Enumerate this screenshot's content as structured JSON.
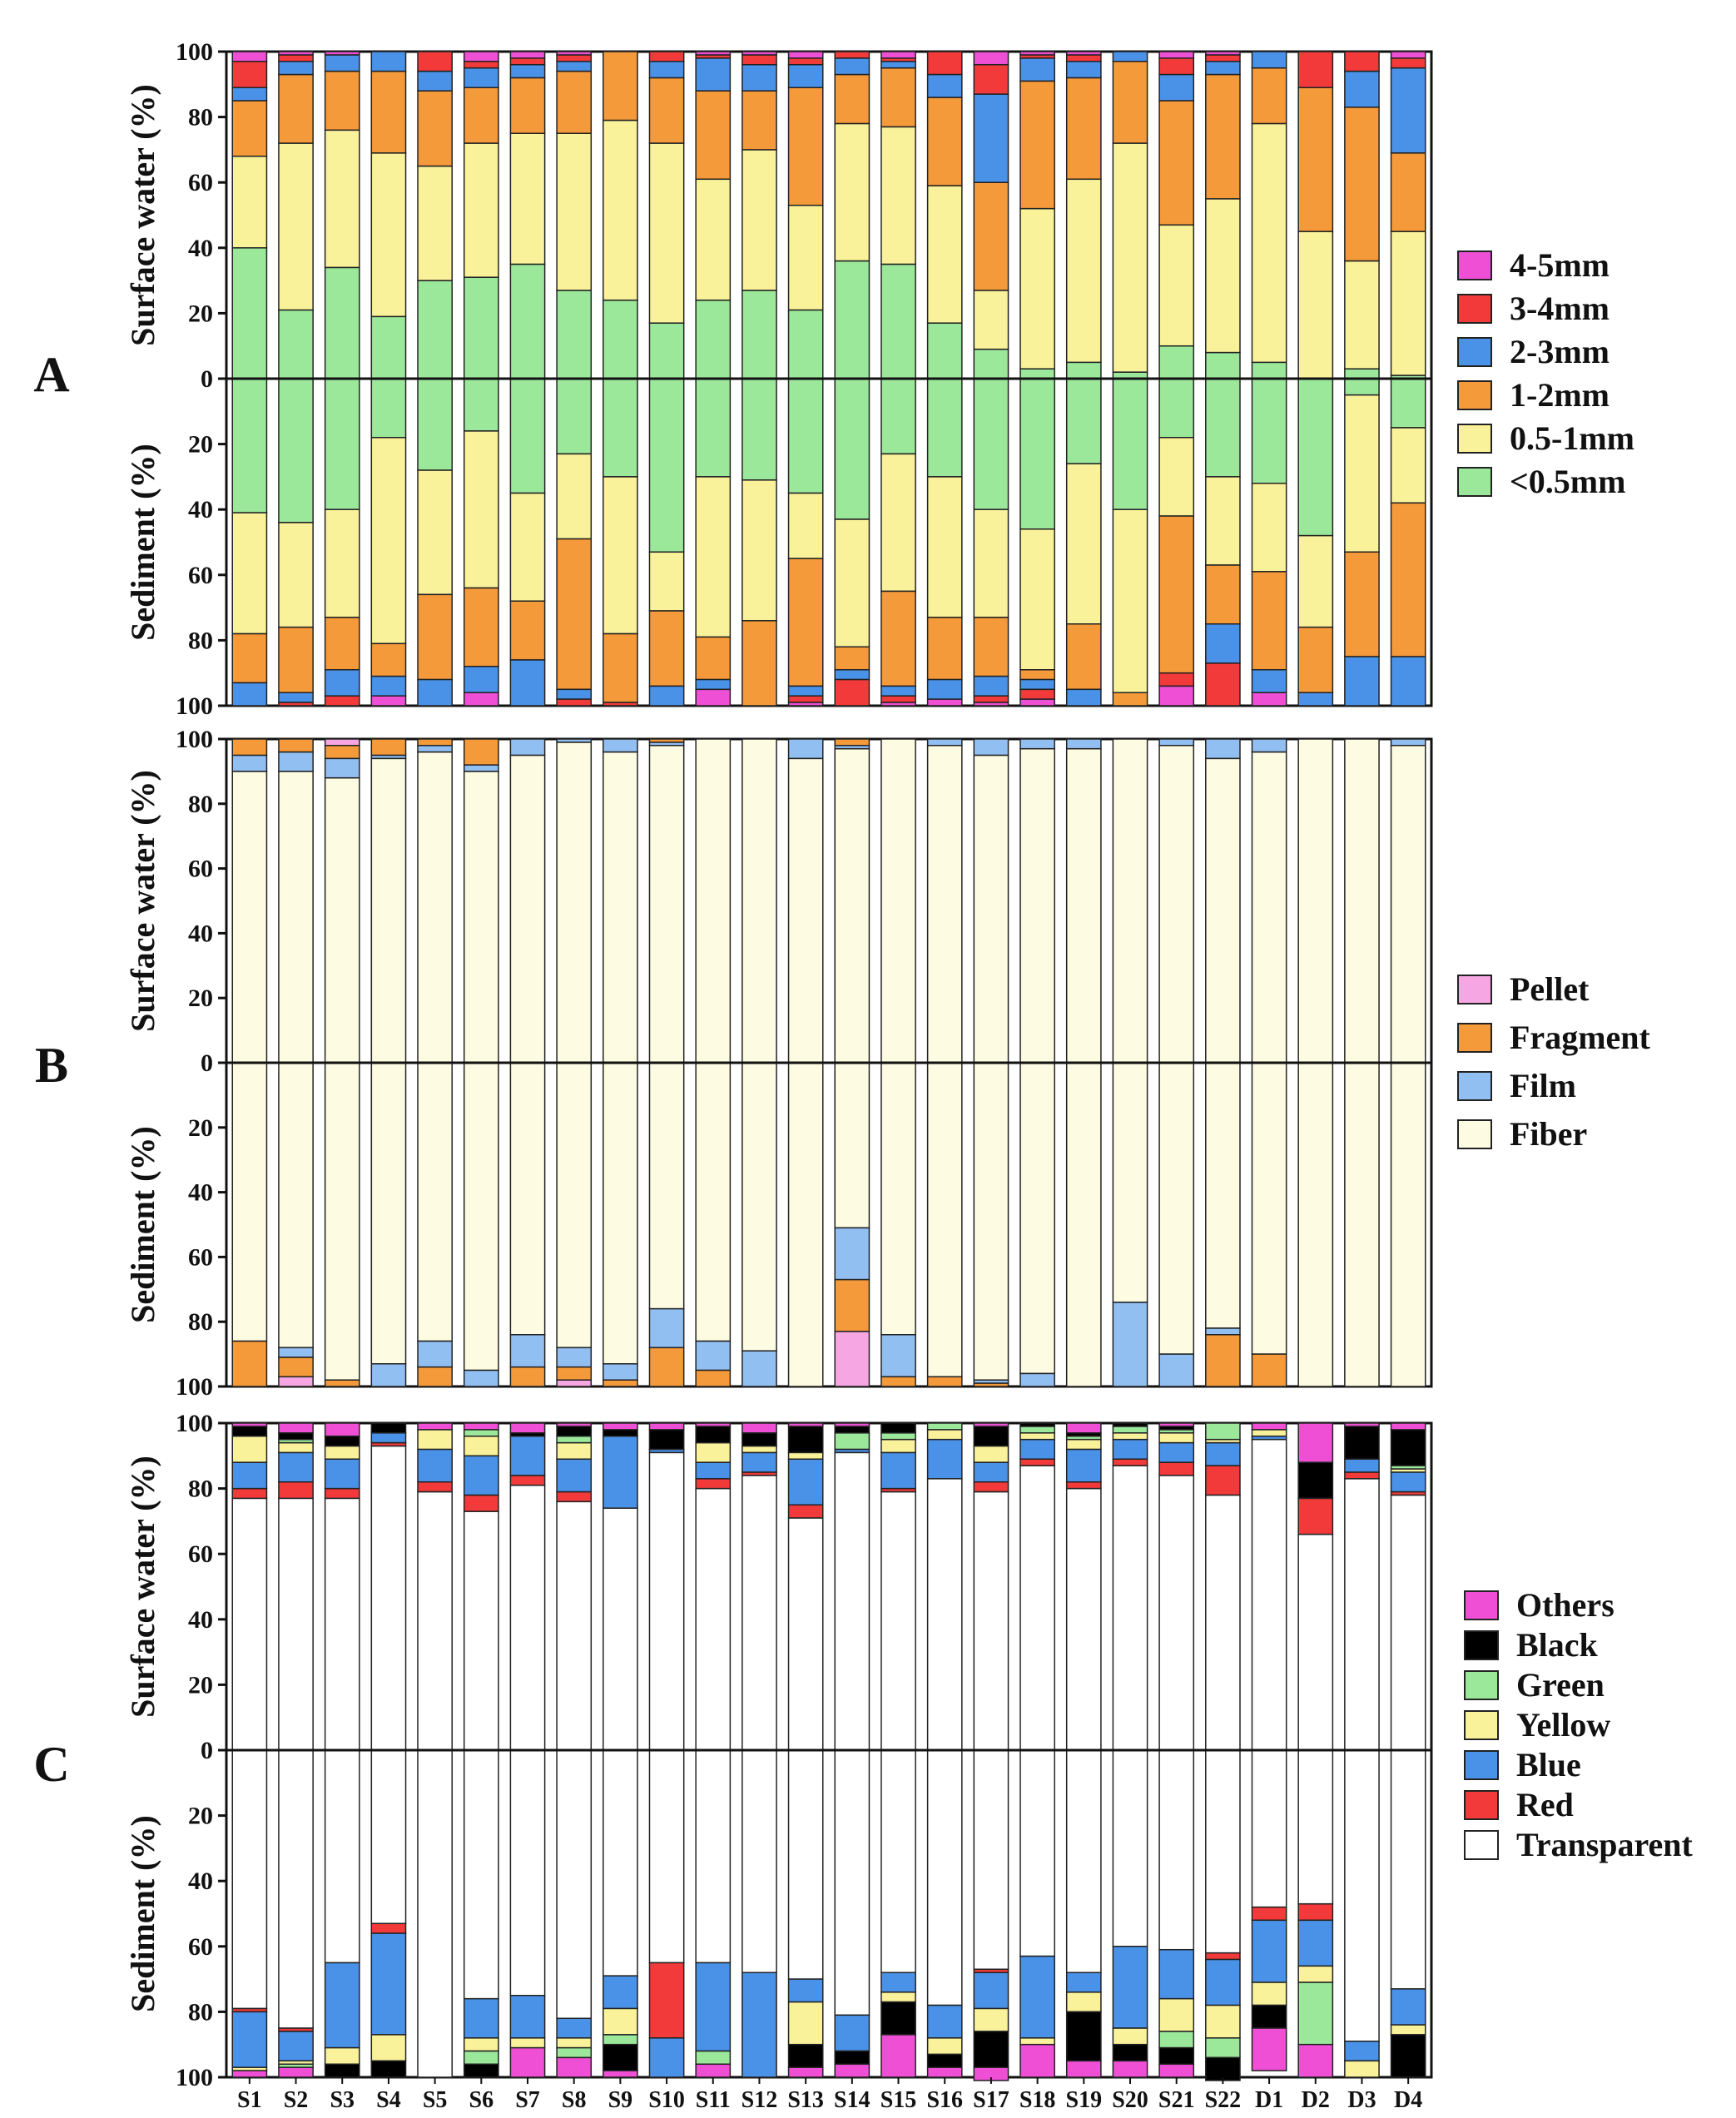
{
  "categories": [
    "S1",
    "S2",
    "S3",
    "S4",
    "S5",
    "S6",
    "S7",
    "S8",
    "S9",
    "S10",
    "S11",
    "S12",
    "S13",
    "S14",
    "S15",
    "S16",
    "S17",
    "S18",
    "S19",
    "S20",
    "S21",
    "S22",
    "D1",
    "D2",
    "D3",
    "D4"
  ],
  "y_ticks_surface": [
    "100",
    "80",
    "60",
    "40",
    "20",
    "0"
  ],
  "y_ticks_sediment": [
    "20",
    "40",
    "60",
    "80",
    "100"
  ],
  "y_label_surface": "Surface water (%)",
  "y_label_sediment": "Sediment (%)",
  "chart_data": [
    {
      "type": "bar",
      "panel": "A",
      "ylim": [
        0,
        100
      ],
      "categories": [
        "S1",
        "S2",
        "S3",
        "S4",
        "S5",
        "S6",
        "S7",
        "S8",
        "S9",
        "S10",
        "S11",
        "S12",
        "S13",
        "S14",
        "S15",
        "S16",
        "S17",
        "S18",
        "S19",
        "S20",
        "S21",
        "S22",
        "D1",
        "D2",
        "D3",
        "D4"
      ],
      "legend": [
        "4-5mm",
        "3-4mm",
        "2-3mm",
        "1-2mm",
        "0.5-1mm",
        "<0.5mm"
      ],
      "colors": {
        "4-5mm": "#ee4fd4",
        "3-4mm": "#f23a3a",
        "2-3mm": "#4a92e8",
        "1-2mm": "#f59a3a",
        "0.5-1mm": "#f9f29a",
        "<0.5mm": "#9be89b"
      },
      "stack_order": [
        "<0.5mm",
        "0.5-1mm",
        "1-2mm",
        "2-3mm",
        "3-4mm",
        "4-5mm"
      ],
      "surface": {
        "<0.5mm": [
          40,
          21,
          34,
          19,
          30,
          31,
          35,
          27,
          24,
          17,
          24,
          27,
          21,
          36,
          35,
          17,
          9,
          3,
          5,
          2,
          10,
          8,
          5,
          0,
          3,
          1
        ],
        "0.5-1mm": [
          28,
          51,
          42,
          50,
          35,
          41,
          40,
          48,
          55,
          55,
          37,
          43,
          32,
          42,
          42,
          42,
          18,
          49,
          56,
          70,
          37,
          47,
          73,
          45,
          33,
          44
        ],
        "1-2mm": [
          17,
          21,
          18,
          25,
          23,
          17,
          17,
          19,
          21,
          20,
          27,
          18,
          36,
          15,
          18,
          27,
          33,
          39,
          31,
          25,
          38,
          38,
          17,
          44,
          47,
          24
        ],
        "2-3mm": [
          4,
          4,
          5,
          6,
          6,
          6,
          4,
          3,
          0,
          5,
          10,
          8,
          7,
          5,
          2,
          7,
          27,
          7,
          5,
          3,
          8,
          4,
          5,
          0,
          11,
          26
        ],
        "3-4mm": [
          8,
          2,
          0,
          0,
          6,
          2,
          2,
          2,
          0,
          3,
          1,
          3,
          2,
          2,
          1,
          7,
          9,
          1,
          2,
          0,
          5,
          2,
          0,
          11,
          6,
          3
        ],
        "4-5mm": [
          3,
          1,
          1,
          0,
          0,
          3,
          2,
          1,
          0,
          0,
          1,
          1,
          2,
          0,
          2,
          0,
          4,
          1,
          1,
          0,
          2,
          1,
          0,
          0,
          0,
          2
        ]
      },
      "sediment": {
        "<0.5mm": [
          41,
          44,
          40,
          18,
          28,
          16,
          35,
          23,
          30,
          53,
          30,
          31,
          35,
          43,
          23,
          30,
          40,
          46,
          26,
          40,
          18,
          30,
          32,
          48,
          5,
          15
        ],
        "0.5-1mm": [
          37,
          32,
          33,
          63,
          38,
          48,
          33,
          26,
          48,
          18,
          49,
          43,
          20,
          39,
          42,
          43,
          33,
          43,
          49,
          56,
          24,
          27,
          27,
          28,
          48,
          23
        ],
        "1-2mm": [
          15,
          20,
          16,
          10,
          26,
          24,
          18,
          46,
          21,
          23,
          13,
          26,
          39,
          7,
          29,
          19,
          18,
          3,
          20,
          4,
          48,
          18,
          30,
          20,
          32,
          47
        ],
        "2-3mm": [
          7,
          3,
          8,
          6,
          8,
          8,
          14,
          3,
          0,
          6,
          3,
          0,
          3,
          3,
          3,
          6,
          6,
          3,
          5,
          0,
          0,
          12,
          7,
          4,
          15,
          15
        ],
        "3-4mm": [
          0,
          1,
          3,
          0,
          0,
          0,
          0,
          2,
          1,
          0,
          0,
          0,
          2,
          8,
          2,
          0,
          2,
          3,
          0,
          0,
          4,
          13,
          0,
          0,
          0,
          0
        ],
        "4-5mm": [
          0,
          0,
          0,
          3,
          0,
          4,
          0,
          0,
          0,
          0,
          5,
          0,
          1,
          0,
          1,
          2,
          1,
          2,
          0,
          0,
          6,
          0,
          4,
          0,
          0,
          0
        ]
      }
    },
    {
      "type": "bar",
      "panel": "B",
      "ylim": [
        0,
        100
      ],
      "categories": [
        "S1",
        "S2",
        "S3",
        "S4",
        "S5",
        "S6",
        "S7",
        "S8",
        "S9",
        "S10",
        "S11",
        "S12",
        "S13",
        "S14",
        "S15",
        "S16",
        "S17",
        "S18",
        "S19",
        "S20",
        "S21",
        "S22",
        "D1",
        "D2",
        "D3",
        "D4"
      ],
      "legend": [
        "Pellet",
        "Fragment",
        "Film",
        "Fiber"
      ],
      "colors": {
        "Pellet": "#f6a6e2",
        "Fragment": "#f59a3a",
        "Film": "#92bff2",
        "Fiber": "#fdfbe2"
      },
      "stack_order": [
        "Fiber",
        "Film",
        "Fragment",
        "Pellet"
      ],
      "surface": {
        "Fiber": [
          90,
          90,
          88,
          94,
          96,
          90,
          95,
          99,
          96,
          98,
          100,
          100,
          94,
          97,
          100,
          98,
          95,
          97,
          97,
          100,
          98,
          94,
          96,
          100,
          100,
          98
        ],
        "Film": [
          5,
          6,
          6,
          1,
          2,
          2,
          5,
          1,
          4,
          1,
          0,
          0,
          6,
          1,
          0,
          2,
          5,
          3,
          3,
          0,
          2,
          6,
          4,
          0,
          0,
          2
        ],
        "Fragment": [
          5,
          4,
          4,
          5,
          2,
          8,
          0,
          0,
          0,
          1,
          0,
          0,
          0,
          2,
          0,
          0,
          0,
          0,
          0,
          0,
          0,
          0,
          0,
          0,
          0,
          0
        ],
        "Pellet": [
          0,
          0,
          2,
          0,
          0,
          0,
          0,
          0,
          0,
          0,
          0,
          0,
          0,
          0,
          0,
          0,
          0,
          0,
          0,
          0,
          0,
          0,
          0,
          0,
          0,
          0
        ]
      },
      "sediment": {
        "Fiber": [
          86,
          88,
          98,
          93,
          86,
          95,
          84,
          88,
          93,
          76,
          86,
          89,
          100,
          51,
          84,
          97,
          98,
          96,
          100,
          74,
          90,
          82,
          90,
          100,
          100,
          100
        ],
        "Film": [
          0,
          3,
          0,
          7,
          8,
          5,
          10,
          6,
          5,
          12,
          9,
          11,
          0,
          16,
          13,
          0,
          1,
          4,
          0,
          26,
          10,
          2,
          0,
          0,
          0,
          0
        ],
        "Fragment": [
          14,
          6,
          2,
          0,
          6,
          0,
          6,
          4,
          2,
          12,
          5,
          0,
          0,
          16,
          3,
          3,
          1,
          0,
          0,
          0,
          0,
          16,
          10,
          0,
          0,
          0
        ],
        "Pellet": [
          0,
          3,
          0,
          0,
          0,
          0,
          0,
          2,
          0,
          0,
          0,
          0,
          0,
          17,
          0,
          0,
          0,
          0,
          0,
          0,
          0,
          0,
          0,
          0,
          0,
          0
        ]
      }
    },
    {
      "type": "bar",
      "panel": "C",
      "ylim": [
        0,
        100
      ],
      "categories": [
        "S1",
        "S2",
        "S3",
        "S4",
        "S5",
        "S6",
        "S7",
        "S8",
        "S9",
        "S10",
        "S11",
        "S12",
        "S13",
        "S14",
        "S15",
        "S16",
        "S17",
        "S18",
        "S19",
        "S20",
        "S21",
        "S22",
        "D1",
        "D2",
        "D3",
        "D4"
      ],
      "legend": [
        "Others",
        "Black",
        "Green",
        "Yellow",
        "Blue",
        "Red",
        "Transparent"
      ],
      "colors": {
        "Others": "#ee4fd4",
        "Black": "#000000",
        "Green": "#9be89b",
        "Yellow": "#f9f29a",
        "Blue": "#4a92e8",
        "Red": "#f23a3a",
        "Transparent": "#ffffff"
      },
      "stack_order": [
        "Transparent",
        "Red",
        "Blue",
        "Yellow",
        "Green",
        "Black",
        "Others"
      ],
      "surface": {
        "Transparent": [
          77,
          77,
          77,
          93,
          79,
          73,
          81,
          76,
          74,
          91,
          80,
          84,
          71,
          91,
          79,
          83,
          79,
          87,
          80,
          87,
          84,
          78,
          95,
          66,
          83,
          78
        ],
        "Red": [
          3,
          5,
          3,
          1,
          3,
          5,
          3,
          3,
          0,
          0,
          3,
          1,
          4,
          0,
          1,
          0,
          3,
          2,
          2,
          2,
          4,
          9,
          0,
          11,
          2,
          1
        ],
        "Blue": [
          8,
          9,
          9,
          3,
          10,
          12,
          12,
          10,
          22,
          1,
          5,
          6,
          14,
          1,
          11,
          12,
          6,
          6,
          10,
          6,
          6,
          7,
          1,
          0,
          4,
          6
        ],
        "Yellow": [
          8,
          3,
          4,
          0,
          6,
          6,
          0,
          5,
          0,
          0,
          6,
          2,
          2,
          0,
          4,
          3,
          5,
          2,
          3,
          2,
          3,
          1,
          2,
          0,
          0,
          1
        ],
        "Green": [
          0,
          1,
          0,
          0,
          0,
          2,
          0,
          2,
          0,
          0,
          0,
          0,
          0,
          5,
          2,
          2,
          0,
          2,
          1,
          2,
          1,
          5,
          0,
          0,
          0,
          1
        ],
        "Black": [
          3,
          2,
          3,
          3,
          0,
          0,
          1,
          3,
          2,
          6,
          5,
          4,
          8,
          2,
          3,
          0,
          6,
          1,
          1,
          1,
          1,
          0,
          0,
          11,
          10,
          11
        ],
        "Others": [
          1,
          3,
          4,
          0,
          2,
          2,
          3,
          1,
          2,
          2,
          1,
          3,
          1,
          1,
          0,
          0,
          1,
          0,
          3,
          0,
          1,
          0,
          2,
          12,
          1,
          2
        ]
      },
      "sediment": {
        "Transparent": [
          79,
          85,
          65,
          53,
          100,
          76,
          75,
          82,
          69,
          65,
          65,
          68,
          70,
          81,
          68,
          78,
          67,
          63,
          68,
          60,
          61,
          62,
          48,
          47,
          89,
          73
        ],
        "Red": [
          1,
          1,
          0,
          3,
          0,
          0,
          0,
          0,
          0,
          23,
          0,
          0,
          0,
          0,
          0,
          0,
          1,
          0,
          0,
          0,
          0,
          2,
          4,
          5,
          0,
          0
        ],
        "Blue": [
          17,
          9,
          26,
          31,
          0,
          12,
          13,
          6,
          10,
          12,
          27,
          32,
          7,
          11,
          6,
          10,
          11,
          25,
          6,
          25,
          15,
          14,
          19,
          14,
          6,
          11
        ],
        "Yellow": [
          1,
          1,
          5,
          8,
          0,
          4,
          3,
          3,
          8,
          0,
          0,
          0,
          13,
          0,
          3,
          5,
          7,
          2,
          6,
          5,
          10,
          10,
          7,
          5,
          5,
          3
        ],
        "Green": [
          0,
          1,
          0,
          0,
          0,
          4,
          0,
          3,
          3,
          0,
          4,
          0,
          0,
          0,
          0,
          0,
          0,
          0,
          0,
          0,
          5,
          6,
          0,
          19,
          0,
          0
        ],
        "Black": [
          0,
          0,
          4,
          5,
          0,
          4,
          0,
          0,
          8,
          0,
          0,
          0,
          7,
          4,
          10,
          4,
          11,
          0,
          15,
          5,
          5,
          7,
          7,
          0,
          0,
          13
        ],
        "Others": [
          2,
          3,
          0,
          0,
          0,
          0,
          9,
          6,
          2,
          0,
          4,
          0,
          3,
          4,
          13,
          3,
          4,
          10,
          5,
          5,
          4,
          0,
          13,
          10,
          0,
          0
        ]
      }
    }
  ]
}
